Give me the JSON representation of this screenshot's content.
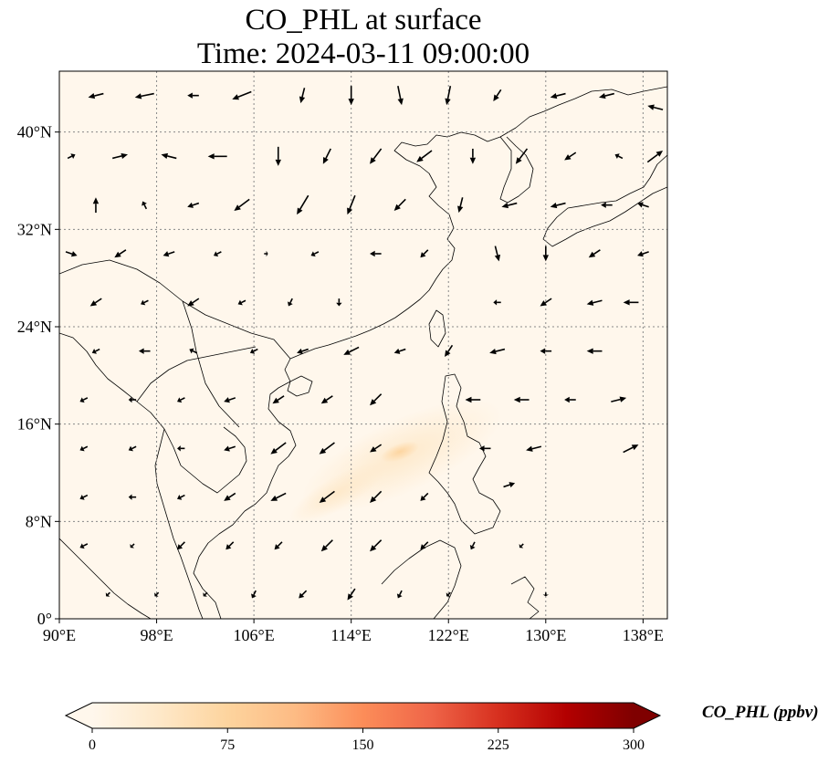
{
  "title": {
    "line1": "CO_PHL at surface",
    "line2": "Time: 2024-03-11 09:00:00"
  },
  "map": {
    "projection": "PlateCarree",
    "lon_range": [
      90,
      140
    ],
    "lat_range": [
      0,
      45
    ],
    "x_ticks": [
      {
        "lon": 90,
        "label": "90°E"
      },
      {
        "lon": 98,
        "label": "98°E"
      },
      {
        "lon": 106,
        "label": "106°E"
      },
      {
        "lon": 114,
        "label": "114°E"
      },
      {
        "lon": 122,
        "label": "122°E"
      },
      {
        "lon": 130,
        "label": "130°E"
      },
      {
        "lon": 138,
        "label": "138°E"
      }
    ],
    "y_ticks": [
      {
        "lat": 0,
        "label": "0°"
      },
      {
        "lat": 8,
        "label": "8°N"
      },
      {
        "lat": 16,
        "label": "16°N"
      },
      {
        "lat": 24,
        "label": "24°N"
      },
      {
        "lat": 32,
        "label": "32°N"
      },
      {
        "lat": 40,
        "label": "40°N"
      }
    ],
    "gridlines": true,
    "background_color": "#fff7ec",
    "coastline_color": "#000000",
    "plume_color": "#fdd49e",
    "plume_center": {
      "lon": 118.5,
      "lat": 14.3
    }
  },
  "wind_vectors": [
    {
      "lon": 93,
      "lat": 43,
      "u": -4,
      "v": -1
    },
    {
      "lon": 97,
      "lat": 43,
      "u": -5,
      "v": -1
    },
    {
      "lon": 101,
      "lat": 43,
      "u": -3,
      "v": 0
    },
    {
      "lon": 105,
      "lat": 43,
      "u": -5,
      "v": -2
    },
    {
      "lon": 110,
      "lat": 43,
      "u": -1,
      "v": -4
    },
    {
      "lon": 114,
      "lat": 43,
      "u": 0,
      "v": -5
    },
    {
      "lon": 118,
      "lat": 43,
      "u": 1,
      "v": -5
    },
    {
      "lon": 122,
      "lat": 43,
      "u": -1,
      "v": -5
    },
    {
      "lon": 126,
      "lat": 43,
      "u": -2,
      "v": -3
    },
    {
      "lon": 131,
      "lat": 43,
      "u": -4,
      "v": -1
    },
    {
      "lon": 135,
      "lat": 43,
      "u": -4,
      "v": -1
    },
    {
      "lon": 139,
      "lat": 42,
      "u": -4,
      "v": 1
    },
    {
      "lon": 91,
      "lat": 38,
      "u": 2,
      "v": 1
    },
    {
      "lon": 95,
      "lat": 38,
      "u": 4,
      "v": 1
    },
    {
      "lon": 99,
      "lat": 38,
      "u": -4,
      "v": 1
    },
    {
      "lon": 103,
      "lat": 38,
      "u": -5,
      "v": 0
    },
    {
      "lon": 108,
      "lat": 38,
      "u": 0,
      "v": -5
    },
    {
      "lon": 112,
      "lat": 38,
      "u": -2,
      "v": -4
    },
    {
      "lon": 116,
      "lat": 38,
      "u": -3,
      "v": -4
    },
    {
      "lon": 120,
      "lat": 38,
      "u": -4,
      "v": -3
    },
    {
      "lon": 124,
      "lat": 38,
      "u": 0,
      "v": -4
    },
    {
      "lon": 128,
      "lat": 38,
      "u": -3,
      "v": -4
    },
    {
      "lon": 132,
      "lat": 38,
      "u": -3,
      "v": -2
    },
    {
      "lon": 136,
      "lat": 38,
      "u": -2,
      "v": 1
    },
    {
      "lon": 139,
      "lat": 38,
      "u": 4,
      "v": 3
    },
    {
      "lon": 93,
      "lat": 34,
      "u": 0,
      "v": 4
    },
    {
      "lon": 97,
      "lat": 34,
      "u": -1,
      "v": 2
    },
    {
      "lon": 101,
      "lat": 34,
      "u": -3,
      "v": -1
    },
    {
      "lon": 105,
      "lat": 34,
      "u": -4,
      "v": -3
    },
    {
      "lon": 110,
      "lat": 34,
      "u": -3,
      "v": -5
    },
    {
      "lon": 114,
      "lat": 34,
      "u": -2,
      "v": -5
    },
    {
      "lon": 118,
      "lat": 34,
      "u": -3,
      "v": -3
    },
    {
      "lon": 123,
      "lat": 34,
      "u": -1,
      "v": -4
    },
    {
      "lon": 127,
      "lat": 34,
      "u": -4,
      "v": -1
    },
    {
      "lon": 131,
      "lat": 34,
      "u": -4,
      "v": -1
    },
    {
      "lon": 135,
      "lat": 34,
      "u": -3,
      "v": 0
    },
    {
      "lon": 138,
      "lat": 34,
      "u": -3,
      "v": 1
    },
    {
      "lon": 91,
      "lat": 30,
      "u": 3,
      "v": -1
    },
    {
      "lon": 95,
      "lat": 30,
      "u": -3,
      "v": -2
    },
    {
      "lon": 99,
      "lat": 30,
      "u": -3,
      "v": -1
    },
    {
      "lon": 103,
      "lat": 30,
      "u": -2,
      "v": -1
    },
    {
      "lon": 107,
      "lat": 30,
      "u": 1,
      "v": 0
    },
    {
      "lon": 111,
      "lat": 30,
      "u": -2,
      "v": -1
    },
    {
      "lon": 116,
      "lat": 30,
      "u": -3,
      "v": 0
    },
    {
      "lon": 120,
      "lat": 30,
      "u": -2,
      "v": -2
    },
    {
      "lon": 126,
      "lat": 30,
      "u": 1,
      "v": -4
    },
    {
      "lon": 130,
      "lat": 30,
      "u": 0,
      "v": -4
    },
    {
      "lon": 134,
      "lat": 30,
      "u": -3,
      "v": -2
    },
    {
      "lon": 138,
      "lat": 30,
      "u": -3,
      "v": -1
    },
    {
      "lon": 93,
      "lat": 26,
      "u": -3,
      "v": -2
    },
    {
      "lon": 97,
      "lat": 26,
      "u": -2,
      "v": -1
    },
    {
      "lon": 101,
      "lat": 26,
      "u": -3,
      "v": -2
    },
    {
      "lon": 105,
      "lat": 26,
      "u": -2,
      "v": -1
    },
    {
      "lon": 109,
      "lat": 26,
      "u": -1,
      "v": -2
    },
    {
      "lon": 113,
      "lat": 26,
      "u": 0,
      "v": -2
    },
    {
      "lon": 126,
      "lat": 26,
      "u": -2,
      "v": 0
    },
    {
      "lon": 130,
      "lat": 26,
      "u": -3,
      "v": -2
    },
    {
      "lon": 134,
      "lat": 26,
      "u": -4,
      "v": -1
    },
    {
      "lon": 137,
      "lat": 26,
      "u": -4,
      "v": 0
    },
    {
      "lon": 93,
      "lat": 22,
      "u": -2,
      "v": -1
    },
    {
      "lon": 97,
      "lat": 22,
      "u": -3,
      "v": 0
    },
    {
      "lon": 101,
      "lat": 22,
      "u": -2,
      "v": 1
    },
    {
      "lon": 106,
      "lat": 22,
      "u": -2,
      "v": -1
    },
    {
      "lon": 110,
      "lat": 22,
      "u": -3,
      "v": -1
    },
    {
      "lon": 114,
      "lat": 22,
      "u": -4,
      "v": -2
    },
    {
      "lon": 118,
      "lat": 22,
      "u": -3,
      "v": -1
    },
    {
      "lon": 122,
      "lat": 22,
      "u": -2,
      "v": -3
    },
    {
      "lon": 126,
      "lat": 22,
      "u": -4,
      "v": -1
    },
    {
      "lon": 130,
      "lat": 22,
      "u": -3,
      "v": 0
    },
    {
      "lon": 134,
      "lat": 22,
      "u": -4,
      "v": 0
    },
    {
      "lon": 92,
      "lat": 18,
      "u": -2,
      "v": -1
    },
    {
      "lon": 96,
      "lat": 18,
      "u": -2,
      "v": 0
    },
    {
      "lon": 100,
      "lat": 18,
      "u": -2,
      "v": -1
    },
    {
      "lon": 104,
      "lat": 18,
      "u": -3,
      "v": -1
    },
    {
      "lon": 108,
      "lat": 18,
      "u": -3,
      "v": -2
    },
    {
      "lon": 112,
      "lat": 18,
      "u": -3,
      "v": -2
    },
    {
      "lon": 116,
      "lat": 18,
      "u": -3,
      "v": -3
    },
    {
      "lon": 124,
      "lat": 18,
      "u": -4,
      "v": 0
    },
    {
      "lon": 128,
      "lat": 18,
      "u": -4,
      "v": 0
    },
    {
      "lon": 132,
      "lat": 18,
      "u": -3,
      "v": 0
    },
    {
      "lon": 136,
      "lat": 18,
      "u": 4,
      "v": 1
    },
    {
      "lon": 92,
      "lat": 14,
      "u": -2,
      "v": -1
    },
    {
      "lon": 96,
      "lat": 14,
      "u": -2,
      "v": -1
    },
    {
      "lon": 100,
      "lat": 14,
      "u": -2,
      "v": 0
    },
    {
      "lon": 104,
      "lat": 14,
      "u": -3,
      "v": -1
    },
    {
      "lon": 108,
      "lat": 14,
      "u": -4,
      "v": -3
    },
    {
      "lon": 112,
      "lat": 14,
      "u": -4,
      "v": -3
    },
    {
      "lon": 116,
      "lat": 14,
      "u": -3,
      "v": -2
    },
    {
      "lon": 125,
      "lat": 14,
      "u": -3,
      "v": 0
    },
    {
      "lon": 129,
      "lat": 14,
      "u": -4,
      "v": -1
    },
    {
      "lon": 137,
      "lat": 14,
      "u": 4,
      "v": 2
    },
    {
      "lon": 92,
      "lat": 10,
      "u": -2,
      "v": -1
    },
    {
      "lon": 96,
      "lat": 10,
      "u": -2,
      "v": 0
    },
    {
      "lon": 100,
      "lat": 10,
      "u": -2,
      "v": -1
    },
    {
      "lon": 104,
      "lat": 10,
      "u": -3,
      "v": -2
    },
    {
      "lon": 108,
      "lat": 10,
      "u": -4,
      "v": -2
    },
    {
      "lon": 112,
      "lat": 10,
      "u": -4,
      "v": -3
    },
    {
      "lon": 116,
      "lat": 10,
      "u": -3,
      "v": -3
    },
    {
      "lon": 120,
      "lat": 10,
      "u": -2,
      "v": -2
    },
    {
      "lon": 127,
      "lat": 11,
      "u": 3,
      "v": 1
    },
    {
      "lon": 92,
      "lat": 6,
      "u": -2,
      "v": -1
    },
    {
      "lon": 96,
      "lat": 6,
      "u": -1,
      "v": -1
    },
    {
      "lon": 100,
      "lat": 6,
      "u": -2,
      "v": -2
    },
    {
      "lon": 104,
      "lat": 6,
      "u": -2,
      "v": -2
    },
    {
      "lon": 108,
      "lat": 6,
      "u": -2,
      "v": -2
    },
    {
      "lon": 112,
      "lat": 6,
      "u": -3,
      "v": -3
    },
    {
      "lon": 116,
      "lat": 6,
      "u": -3,
      "v": -3
    },
    {
      "lon": 120,
      "lat": 6,
      "u": -2,
      "v": -2
    },
    {
      "lon": 124,
      "lat": 6,
      "u": -1,
      "v": -2
    },
    {
      "lon": 128,
      "lat": 6,
      "u": -1,
      "v": -1
    },
    {
      "lon": 94,
      "lat": 2,
      "u": -1,
      "v": -1
    },
    {
      "lon": 98,
      "lat": 2,
      "u": -1,
      "v": -1
    },
    {
      "lon": 102,
      "lat": 2,
      "u": -1,
      "v": -1
    },
    {
      "lon": 106,
      "lat": 2,
      "u": -1,
      "v": -2
    },
    {
      "lon": 110,
      "lat": 2,
      "u": -2,
      "v": -2
    },
    {
      "lon": 114,
      "lat": 2,
      "u": -2,
      "v": -3
    },
    {
      "lon": 118,
      "lat": 2,
      "u": -1,
      "v": -2
    },
    {
      "lon": 122,
      "lat": 2,
      "u": -1,
      "v": -1
    },
    {
      "lon": 130,
      "lat": 2,
      "u": 0,
      "v": -1
    }
  ],
  "colorbar": {
    "label": "CO_PHL (ppbv)",
    "min": 0,
    "max": 300,
    "extend": "both",
    "colormap": [
      "#fff7ec",
      "#fee8c8",
      "#fdd49e",
      "#fdbb84",
      "#fc8d59",
      "#ef6548",
      "#d7301f",
      "#b30000",
      "#7f0000"
    ],
    "ticks": [
      {
        "value": 0,
        "label": "0"
      },
      {
        "value": 75,
        "label": "75"
      },
      {
        "value": 150,
        "label": "150"
      },
      {
        "value": 225,
        "label": "225"
      },
      {
        "value": 300,
        "label": "300"
      }
    ]
  }
}
